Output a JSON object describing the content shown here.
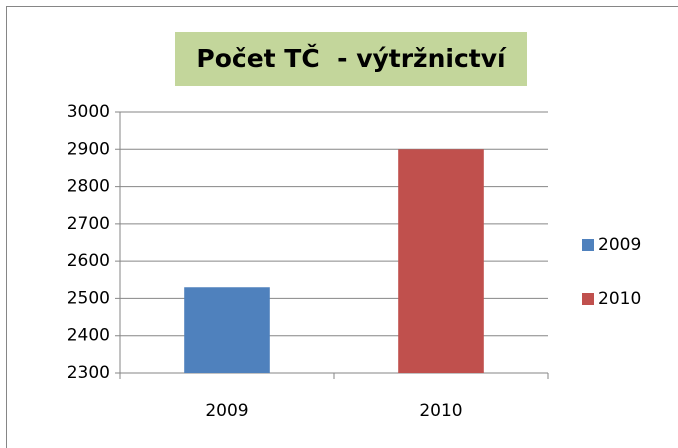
{
  "chart_data": {
    "type": "bar",
    "title": "Počet TČ  - výtržnictví",
    "categories": [
      "2009",
      "2010"
    ],
    "values": [
      2530,
      2900
    ],
    "colors": [
      "#4f81bd",
      "#c0504d"
    ],
    "ylim": [
      2300,
      3000
    ],
    "yticks": [
      2300,
      2400,
      2500,
      2600,
      2700,
      2800,
      2900,
      3000
    ],
    "grid": true,
    "legend": "right"
  }
}
